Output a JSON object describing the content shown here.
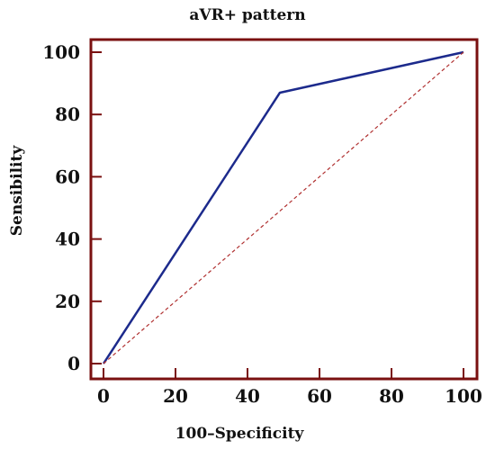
{
  "chart_data": {
    "type": "line",
    "title": "aVR+ pattern",
    "xlabel": "100–Specificity",
    "ylabel": "Sensibility",
    "xlim": [
      0,
      100
    ],
    "ylim": [
      0,
      100
    ],
    "xticks": [
      "0",
      "20",
      "40",
      "60",
      "80",
      "100"
    ],
    "yticks": [
      "0",
      "20",
      "40",
      "60",
      "80",
      "100"
    ],
    "grid": false,
    "series": [
      {
        "role": "roc-curve",
        "style": "solid",
        "x": [
          0,
          49,
          100
        ],
        "y": [
          0,
          87,
          100
        ]
      },
      {
        "role": "reference-diagonal",
        "style": "dashed",
        "x": [
          0,
          100
        ],
        "y": [
          0,
          100
        ]
      }
    ],
    "colors": {
      "frame": "#7a1010",
      "roc": "#1c2a8c",
      "diagonal": "#b03030"
    }
  }
}
